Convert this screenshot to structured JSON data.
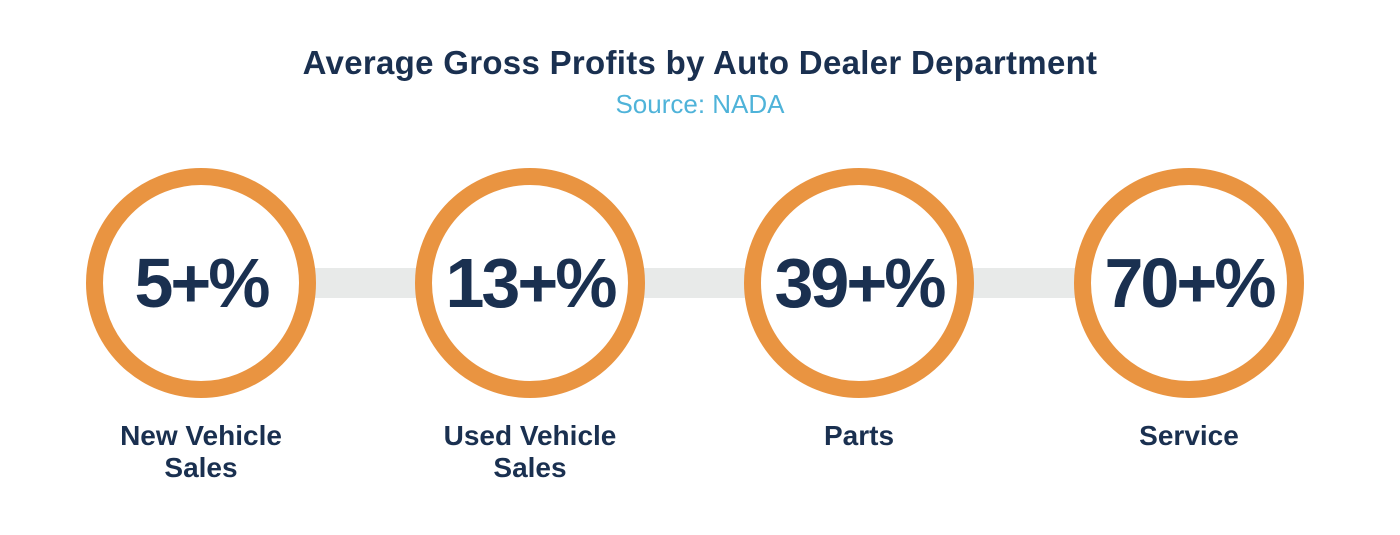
{
  "chart_data": {
    "type": "bar",
    "title": "Average Gross Profits by Auto Dealer Department",
    "subtitle": "Source: NADA",
    "categories": [
      "New Vehicle Sales",
      "Used Vehicle Sales",
      "Parts",
      "Service"
    ],
    "values": [
      5,
      13,
      39,
      70
    ],
    "value_labels": [
      "5+%",
      "13+%",
      "39+%",
      "70+%"
    ],
    "label_lines": [
      [
        "New Vehicle",
        "Sales"
      ],
      [
        "Used Vehicle",
        "Sales"
      ],
      [
        "Parts"
      ],
      [
        "Service"
      ]
    ],
    "unit": "%",
    "colors": {
      "ring": "#e99441",
      "text": "#1a3050",
      "source": "#4fb3d9",
      "connector": "#e8eae9"
    }
  }
}
